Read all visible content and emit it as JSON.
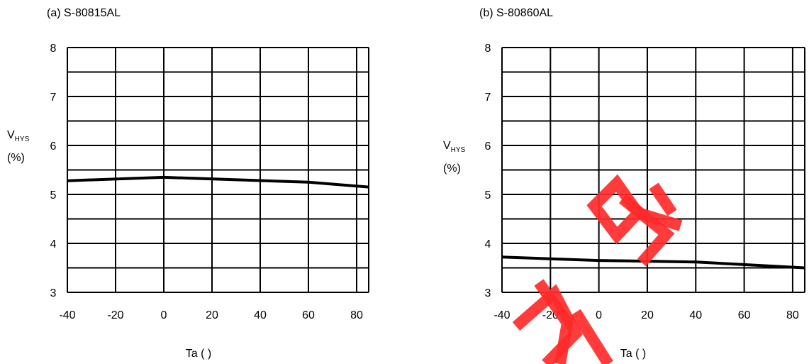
{
  "chart_data": [
    {
      "type": "line",
      "title": "(a)   S-80815AL",
      "xlabel": "Ta (   )",
      "ylabel_main": "V",
      "ylabel_sub": "HYS",
      "ylabel_unit": "(%)",
      "xlim": [
        -40,
        85
      ],
      "ylim": [
        3,
        8
      ],
      "x_ticks": [
        -40,
        -20,
        0,
        20,
        40,
        60,
        80
      ],
      "y_ticks": [
        3,
        4,
        5,
        6,
        7,
        8
      ],
      "grid": true,
      "series": [
        {
          "x": [
            -40,
            0,
            60,
            85
          ],
          "y": [
            5.28,
            5.35,
            5.25,
            5.15
          ]
        }
      ]
    },
    {
      "type": "line",
      "title": "(b)   S-80860AL",
      "xlabel": "Ta (   )",
      "ylabel_main": "V",
      "ylabel_sub": "HYS",
      "ylabel_unit": "(%)",
      "xlim": [
        -40,
        85
      ],
      "ylim": [
        3,
        8
      ],
      "x_ticks": [
        -40,
        -20,
        0,
        20,
        40,
        60,
        80
      ],
      "y_ticks": [
        3,
        4,
        5,
        6,
        7,
        8
      ],
      "grid": true,
      "series": [
        {
          "x": [
            -40,
            0,
            40,
            85
          ],
          "y": [
            3.72,
            3.65,
            3.62,
            3.5
          ]
        }
      ]
    }
  ],
  "watermark": {
    "color": "#ff2a2a"
  }
}
